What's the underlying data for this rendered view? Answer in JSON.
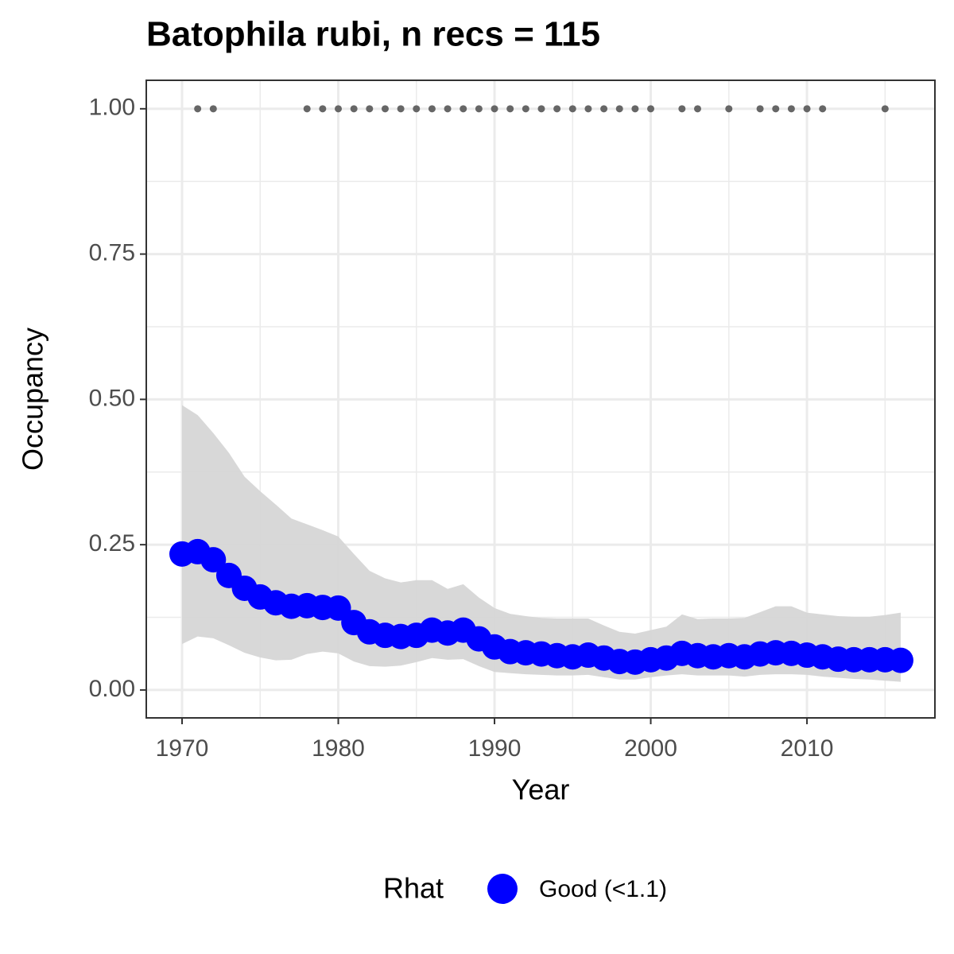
{
  "chart_data": {
    "type": "line",
    "title": "Batophila rubi, n recs = 115",
    "x_label": "Year",
    "y_label": "Occupancy",
    "x": [
      1970,
      1971,
      1972,
      1973,
      1974,
      1975,
      1976,
      1977,
      1978,
      1979,
      1980,
      1981,
      1982,
      1983,
      1984,
      1985,
      1986,
      1987,
      1988,
      1989,
      1990,
      1991,
      1992,
      1993,
      1994,
      1995,
      1996,
      1997,
      1998,
      1999,
      2000,
      2001,
      2002,
      2003,
      2004,
      2005,
      2006,
      2007,
      2008,
      2009,
      2010,
      2011,
      2012,
      2013,
      2014,
      2015,
      2016
    ],
    "series": [
      {
        "name": "Good (<1.1)",
        "color": "#0000ff",
        "values": [
          0.234,
          0.238,
          0.224,
          0.197,
          0.175,
          0.16,
          0.15,
          0.144,
          0.145,
          0.142,
          0.141,
          0.116,
          0.1,
          0.094,
          0.092,
          0.094,
          0.103,
          0.098,
          0.103,
          0.088,
          0.074,
          0.066,
          0.064,
          0.062,
          0.059,
          0.057,
          0.06,
          0.055,
          0.049,
          0.048,
          0.052,
          0.055,
          0.063,
          0.059,
          0.057,
          0.059,
          0.057,
          0.062,
          0.064,
          0.063,
          0.06,
          0.057,
          0.053,
          0.052,
          0.052,
          0.052,
          0.051
        ]
      }
    ],
    "band": {
      "color": "#d6d6d6",
      "lower": [
        0.079,
        0.092,
        0.089,
        0.077,
        0.064,
        0.056,
        0.051,
        0.052,
        0.062,
        0.066,
        0.063,
        0.049,
        0.041,
        0.04,
        0.042,
        0.048,
        0.055,
        0.052,
        0.053,
        0.041,
        0.031,
        0.029,
        0.027,
        0.026,
        0.025,
        0.025,
        0.026,
        0.022,
        0.018,
        0.018,
        0.022,
        0.025,
        0.027,
        0.025,
        0.025,
        0.025,
        0.023,
        0.026,
        0.027,
        0.027,
        0.026,
        0.023,
        0.021,
        0.019,
        0.018,
        0.016,
        0.014
      ],
      "upper": [
        0.49,
        0.473,
        0.442,
        0.408,
        0.367,
        0.342,
        0.319,
        0.295,
        0.285,
        0.275,
        0.264,
        0.234,
        0.205,
        0.192,
        0.185,
        0.189,
        0.189,
        0.174,
        0.182,
        0.159,
        0.141,
        0.131,
        0.127,
        0.124,
        0.123,
        0.123,
        0.123,
        0.111,
        0.1,
        0.097,
        0.103,
        0.109,
        0.13,
        0.122,
        0.123,
        0.123,
        0.124,
        0.134,
        0.144,
        0.144,
        0.133,
        0.13,
        0.127,
        0.126,
        0.126,
        0.129,
        0.133
      ]
    },
    "records": {
      "color": "#666666",
      "x": [
        1971,
        1972,
        1978,
        1979,
        1980,
        1981,
        1982,
        1983,
        1984,
        1985,
        1986,
        1987,
        1988,
        1989,
        1990,
        1991,
        1992,
        1993,
        1994,
        1995,
        1996,
        1997,
        1998,
        1999,
        2000,
        2002,
        2003,
        2005,
        2007,
        2008,
        2009,
        2010,
        2011,
        2015
      ],
      "values": [
        1,
        1,
        1,
        1,
        1,
        1,
        1,
        1,
        1,
        1,
        1,
        1,
        1,
        1,
        1,
        1,
        1,
        1,
        1,
        1,
        1,
        1,
        1,
        1,
        1,
        1,
        1,
        1,
        1,
        1,
        1,
        1,
        1,
        1
      ]
    },
    "xlim": [
      1967.71,
      2018.19
    ],
    "ylim": [
      -0.048,
      1.049
    ],
    "xticks": [
      1970,
      1980,
      1990,
      2000,
      2010
    ],
    "yticks": [
      {
        "value": 0,
        "label": "0.00"
      },
      {
        "value": 0.25,
        "label": "0.25"
      },
      {
        "value": 0.5,
        "label": "0.50"
      },
      {
        "value": 0.75,
        "label": "0.75"
      },
      {
        "value": 1,
        "label": "1.00"
      }
    ],
    "x_minor_ticks": [
      1975,
      1985,
      1995,
      2005,
      2015
    ],
    "y_minor_ticks": [
      0.125,
      0.375,
      0.625,
      0.875
    ],
    "grid": true,
    "legend_title": "Rhat",
    "legend_position": "bottom"
  }
}
